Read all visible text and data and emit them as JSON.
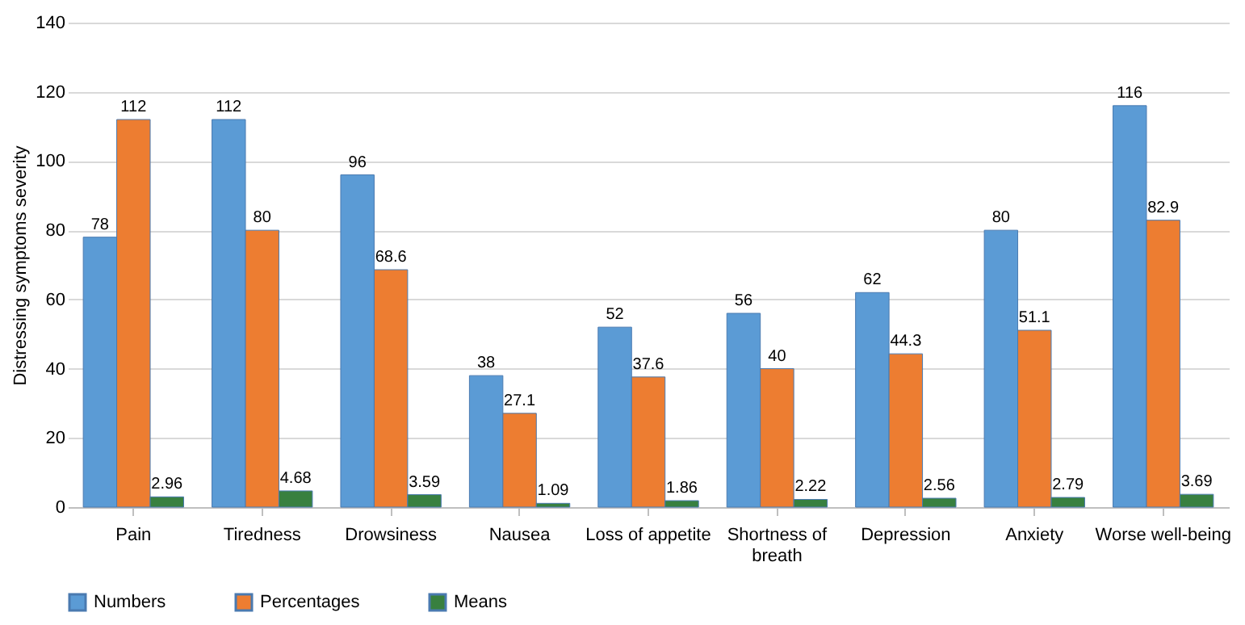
{
  "chart_data": {
    "type": "bar",
    "ylabel": "Distressing symptoms severity",
    "categories": [
      "Pain",
      "Tiredness",
      "Drowsiness",
      "Nausea",
      "Loss of appetite",
      "Shortness of breath",
      "Depression",
      "Anxiety",
      "Worse well-being"
    ],
    "series": [
      {
        "name": "Numbers",
        "color": "#5b9bd5",
        "values": [
          78,
          112,
          96,
          38,
          52,
          56,
          62,
          80,
          116
        ]
      },
      {
        "name": "Percentages",
        "color": "#ed7d31",
        "values": [
          112,
          80,
          68.6,
          27.1,
          37.6,
          40,
          44.3,
          51.1,
          82.9
        ]
      },
      {
        "name": "Means",
        "color": "#38803f",
        "values": [
          2.96,
          4.68,
          3.59,
          1.09,
          1.86,
          2.22,
          2.56,
          2.79,
          3.69
        ]
      }
    ],
    "ylim": [
      0,
      140
    ],
    "yticks": [
      0,
      20,
      40,
      60,
      80,
      100,
      120,
      140
    ],
    "grid": "y",
    "legend": "bottom",
    "data_labels": true
  }
}
